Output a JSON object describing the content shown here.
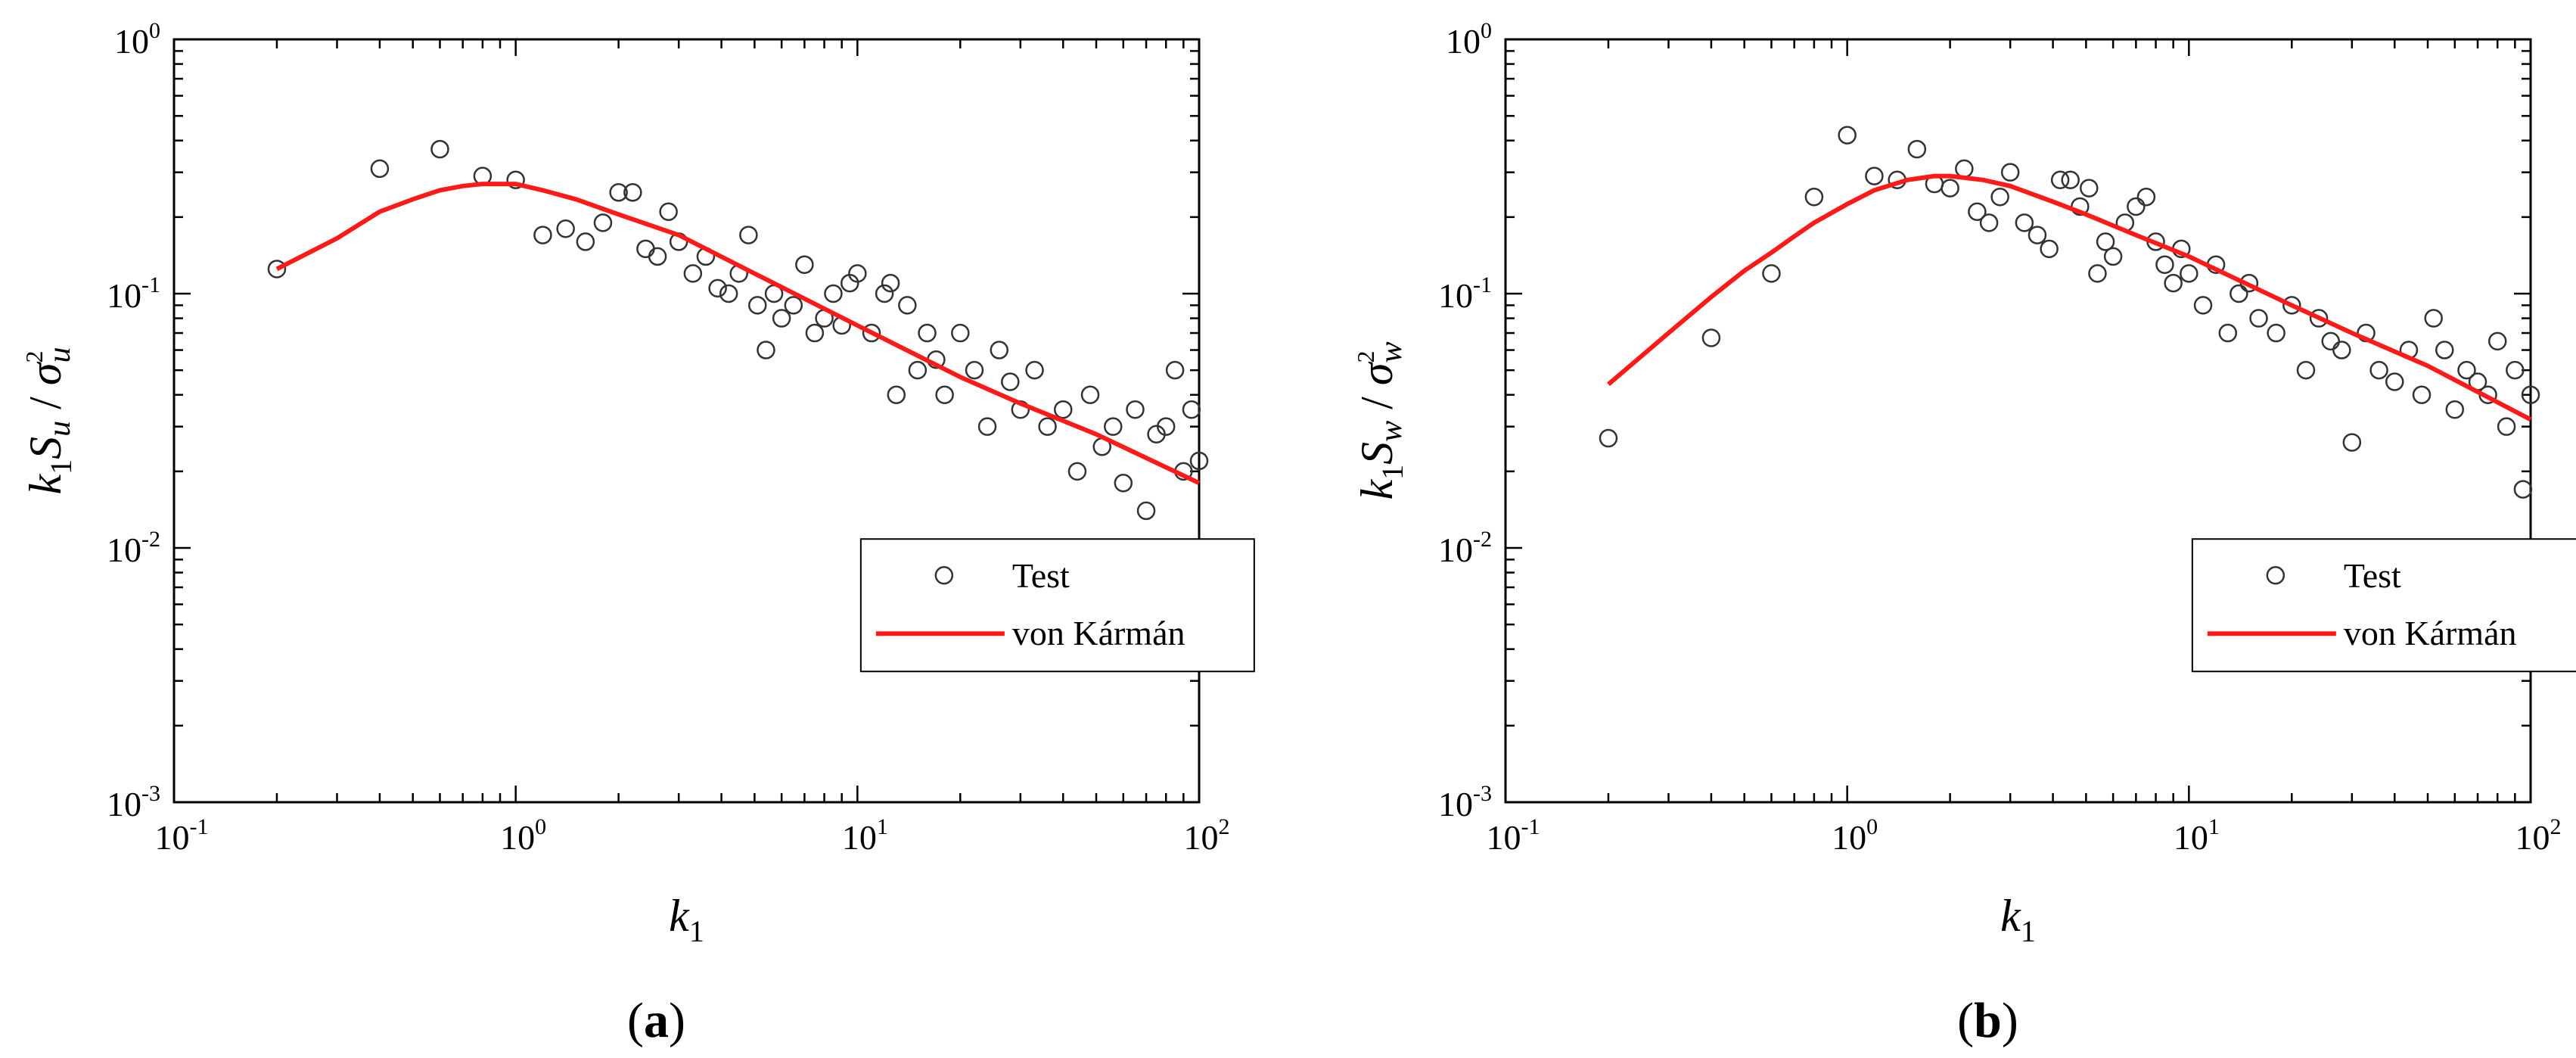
{
  "colors": {
    "model": "#ff1a1a",
    "axis": "#000000",
    "marker": "#333333"
  },
  "legend": {
    "test": "Test",
    "model": "von Kármán"
  },
  "chart_data": [
    {
      "type": "scatter",
      "caption": {
        "open": "(",
        "letter": "a",
        "close": ")"
      },
      "component": "u",
      "xscale": "log",
      "yscale": "log",
      "xlim": [
        0.1,
        100
      ],
      "ylim": [
        0.001,
        1
      ],
      "x_ticks": [
        {
          "base": "10",
          "exp": "-1"
        },
        {
          "base": "10",
          "exp": "0"
        },
        {
          "base": "10",
          "exp": "1"
        },
        {
          "base": "10",
          "exp": "2"
        }
      ],
      "y_ticks": [
        {
          "base": "10",
          "exp": "-3"
        },
        {
          "base": "10",
          "exp": "-2"
        },
        {
          "base": "10",
          "exp": "-1"
        },
        {
          "base": "10",
          "exp": "0"
        }
      ],
      "xlabel": {
        "k": "k",
        "sub": "1"
      },
      "ylabel": {
        "k": "k",
        "sub": "1",
        "S": "S",
        "comp": "u",
        "sep": " / ",
        "sigma": "σ",
        "pow": "2"
      },
      "legend_position": "lower-right",
      "series": [
        {
          "name": "Test",
          "kind": "markers",
          "x": [
            0.2,
            0.4,
            0.6,
            0.8,
            1.0,
            1.2,
            1.4,
            1.6,
            1.8,
            2.0,
            2.2,
            2.4,
            2.6,
            2.8,
            3.0,
            3.3,
            3.6,
            3.9,
            4.2,
            4.5,
            4.8,
            5.1,
            5.4,
            5.7,
            6.0,
            6.5,
            7.0,
            7.5,
            8.0,
            8.5,
            9.0,
            9.5,
            10.0,
            11.0,
            12.0,
            12.5,
            13.0,
            14.0,
            15.0,
            16.0,
            17.0,
            18.0,
            20.0,
            22.0,
            24.0,
            26.0,
            28.0,
            30.0,
            33.0,
            36.0,
            40.0,
            44.0,
            48.0,
            52.0,
            56.0,
            60.0,
            65.0,
            70.0,
            75.0,
            80.0,
            85.0,
            90.0,
            95.0,
            100.0
          ],
          "y": [
            0.125,
            0.31,
            0.37,
            0.29,
            0.28,
            0.17,
            0.18,
            0.16,
            0.19,
            0.25,
            0.25,
            0.15,
            0.14,
            0.21,
            0.16,
            0.12,
            0.14,
            0.105,
            0.1,
            0.12,
            0.17,
            0.09,
            0.06,
            0.1,
            0.08,
            0.09,
            0.13,
            0.07,
            0.08,
            0.1,
            0.075,
            0.11,
            0.12,
            0.07,
            0.1,
            0.11,
            0.04,
            0.09,
            0.05,
            0.07,
            0.055,
            0.04,
            0.07,
            0.05,
            0.03,
            0.06,
            0.045,
            0.035,
            0.05,
            0.03,
            0.035,
            0.02,
            0.04,
            0.025,
            0.03,
            0.018,
            0.035,
            0.014,
            0.028,
            0.03,
            0.05,
            0.02,
            0.035,
            0.022
          ]
        },
        {
          "name": "von Kármán",
          "kind": "line",
          "x": [
            0.2,
            0.3,
            0.4,
            0.5,
            0.6,
            0.7,
            0.8,
            0.9,
            1.0,
            1.2,
            1.5,
            2.0,
            3.0,
            5.0,
            10.0,
            20.0,
            30.0,
            50.0,
            100.0
          ],
          "y": [
            0.125,
            0.165,
            0.21,
            0.235,
            0.255,
            0.265,
            0.27,
            0.27,
            0.27,
            0.255,
            0.235,
            0.205,
            0.17,
            0.12,
            0.075,
            0.047,
            0.037,
            0.028,
            0.018
          ]
        }
      ]
    },
    {
      "type": "scatter",
      "caption": {
        "open": "(",
        "letter": "b",
        "close": ")"
      },
      "component": "w",
      "xscale": "log",
      "yscale": "log",
      "xlim": [
        0.1,
        100
      ],
      "ylim": [
        0.001,
        1
      ],
      "x_ticks": [
        {
          "base": "10",
          "exp": "-1"
        },
        {
          "base": "10",
          "exp": "0"
        },
        {
          "base": "10",
          "exp": "1"
        },
        {
          "base": "10",
          "exp": "2"
        }
      ],
      "y_ticks": [
        {
          "base": "10",
          "exp": "-3"
        },
        {
          "base": "10",
          "exp": "-2"
        },
        {
          "base": "10",
          "exp": "-1"
        },
        {
          "base": "10",
          "exp": "0"
        }
      ],
      "xlabel": {
        "k": "k",
        "sub": "1"
      },
      "ylabel": {
        "k": "k",
        "sub": "1",
        "S": "S",
        "comp": "w",
        "sep": " / ",
        "sigma": "σ",
        "pow": "2"
      },
      "legend_position": "lower-right",
      "series": [
        {
          "name": "Test",
          "kind": "markers",
          "x": [
            0.2,
            0.4,
            0.6,
            0.8,
            1.0,
            1.2,
            1.4,
            1.6,
            1.8,
            2.0,
            2.2,
            2.4,
            2.6,
            2.8,
            3.0,
            3.3,
            3.6,
            3.9,
            4.2,
            4.5,
            4.8,
            5.1,
            5.4,
            5.7,
            6.0,
            6.5,
            7.0,
            7.5,
            8.0,
            8.5,
            9.0,
            9.5,
            10.0,
            11.0,
            12.0,
            13.0,
            14.0,
            15.0,
            16.0,
            18.0,
            20.0,
            22.0,
            24.0,
            26.0,
            28.0,
            30.0,
            33.0,
            36.0,
            40.0,
            44.0,
            48.0,
            52.0,
            56.0,
            60.0,
            65.0,
            70.0,
            75.0,
            80.0,
            85.0,
            90.0,
            95.0,
            100.0
          ],
          "y": [
            0.027,
            0.067,
            0.12,
            0.24,
            0.42,
            0.29,
            0.28,
            0.37,
            0.27,
            0.26,
            0.31,
            0.21,
            0.19,
            0.24,
            0.3,
            0.19,
            0.17,
            0.15,
            0.28,
            0.28,
            0.22,
            0.26,
            0.12,
            0.16,
            0.14,
            0.19,
            0.22,
            0.24,
            0.16,
            0.13,
            0.11,
            0.15,
            0.12,
            0.09,
            0.13,
            0.07,
            0.1,
            0.11,
            0.08,
            0.07,
            0.09,
            0.05,
            0.08,
            0.065,
            0.06,
            0.026,
            0.07,
            0.05,
            0.045,
            0.06,
            0.04,
            0.08,
            0.06,
            0.035,
            0.05,
            0.045,
            0.04,
            0.065,
            0.03,
            0.05,
            0.017,
            0.04
          ]
        },
        {
          "name": "von Kármán",
          "kind": "line",
          "x": [
            0.2,
            0.3,
            0.4,
            0.5,
            0.6,
            0.7,
            0.8,
            1.0,
            1.2,
            1.5,
            1.8,
            2.0,
            2.5,
            3.0,
            4.0,
            5.0,
            7.0,
            10.0,
            20.0,
            30.0,
            50.0,
            100.0
          ],
          "y": [
            0.044,
            0.07,
            0.097,
            0.123,
            0.145,
            0.168,
            0.19,
            0.225,
            0.255,
            0.28,
            0.29,
            0.29,
            0.28,
            0.265,
            0.23,
            0.205,
            0.17,
            0.14,
            0.09,
            0.07,
            0.052,
            0.032
          ]
        }
      ]
    }
  ]
}
